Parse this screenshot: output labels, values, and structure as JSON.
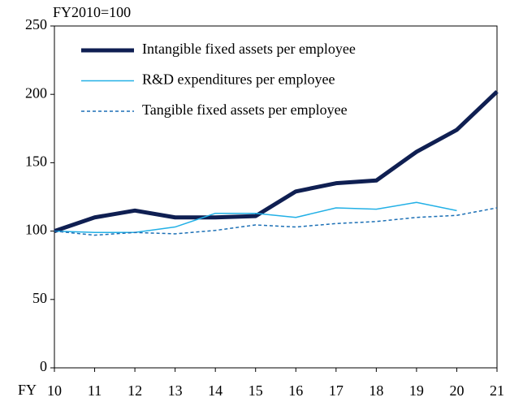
{
  "chart_data": {
    "type": "line",
    "y_unit_label": "FY2010=100",
    "x_label": "FY",
    "categories": [
      "10",
      "11",
      "12",
      "13",
      "14",
      "15",
      "16",
      "17",
      "18",
      "19",
      "20",
      "21"
    ],
    "series": [
      {
        "name": "Intangible fixed assets per employee",
        "color": "#0f1f52",
        "line_width": 5,
        "dashed": false,
        "values": [
          100,
          110,
          115,
          110,
          110,
          111,
          129,
          135,
          137,
          158,
          174,
          202
        ]
      },
      {
        "name": "R&D expenditures per employee",
        "color": "#22b0e6",
        "line_width": 1.5,
        "dashed": false,
        "values": [
          100,
          99,
          99,
          103,
          113,
          113,
          110,
          117,
          116,
          121,
          115,
          null
        ]
      },
      {
        "name": "Tangible fixed assets per employee",
        "color": "#1b6fb5",
        "line_width": 1.5,
        "dashed": true,
        "values": [
          100,
          97,
          99,
          98,
          100.5,
          104.5,
          103,
          105.5,
          107,
          110,
          111.5,
          117
        ]
      }
    ],
    "ylim": [
      0,
      250
    ],
    "yticks": [
      0,
      50,
      100,
      150,
      200,
      250
    ],
    "legend": "upper-left"
  }
}
